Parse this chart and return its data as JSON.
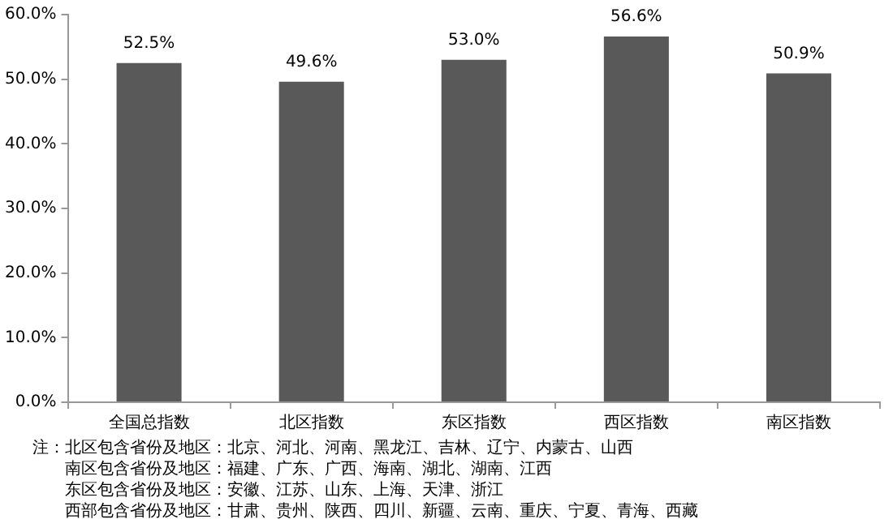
{
  "chart_data": {
    "type": "bar",
    "categories": [
      "全国总指数",
      "北区指数",
      "东区指数",
      "西区指数",
      "南区指数"
    ],
    "values": [
      52.5,
      49.6,
      53.0,
      56.6,
      50.9
    ],
    "value_labels": [
      "52.5%",
      "49.6%",
      "53.0%",
      "56.6%",
      "50.9%"
    ],
    "color": "#595959",
    "ylim": [
      0,
      60
    ],
    "yticks": [
      {
        "value": 0,
        "label": "0.0%"
      },
      {
        "value": 10,
        "label": "10.0%"
      },
      {
        "value": 20,
        "label": "20.0%"
      },
      {
        "value": 30,
        "label": "30.0%"
      },
      {
        "value": 40,
        "label": "40.0%"
      },
      {
        "value": 50,
        "label": "50.0%"
      },
      {
        "value": 60,
        "label": "60.0%"
      }
    ],
    "grid": false,
    "legend": false,
    "annotations": [
      "注：北区包含省份及地区：北京、河北、河南、黑龙江、吉林、辽宁、内蒙古、山西",
      "南区包含省份及地区：福建、广东、广西、海南、湖北、湖南、江西",
      "东区包含省份及地区：安徽、江苏、山东、上海、天津、浙江",
      "西部包含省份及地区：甘肃、贵州、陕西、四川、新疆、云南、重庆、宁夏、青海、西藏"
    ]
  }
}
